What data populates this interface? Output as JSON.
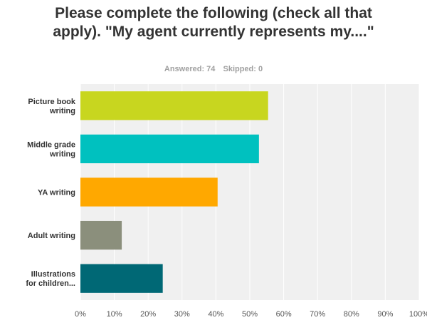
{
  "chart_data": {
    "type": "bar",
    "orientation": "horizontal",
    "title": "Please complete the following (check all that apply). \"My agent currently represents my....\"",
    "answered": "Answered: 74",
    "skipped": "Skipped: 0",
    "categories": [
      [
        "Picture book",
        "writing"
      ],
      [
        "Middle grade",
        "writing"
      ],
      [
        "YA writing"
      ],
      [
        "Adult writing"
      ],
      [
        "Illustrations",
        "for children..."
      ]
    ],
    "values": [
      55.4,
      52.7,
      40.5,
      12.2,
      24.3
    ],
    "colors": [
      "#c8d61f",
      "#00c1bf",
      "#ffa800",
      "#8b8f7c",
      "#006875"
    ],
    "xlim": [
      0,
      100
    ],
    "ticks": [
      "0%",
      "10%",
      "20%",
      "30%",
      "40%",
      "50%",
      "60%",
      "70%",
      "80%",
      "90%",
      "100%"
    ],
    "grid": true,
    "legend": "none"
  }
}
